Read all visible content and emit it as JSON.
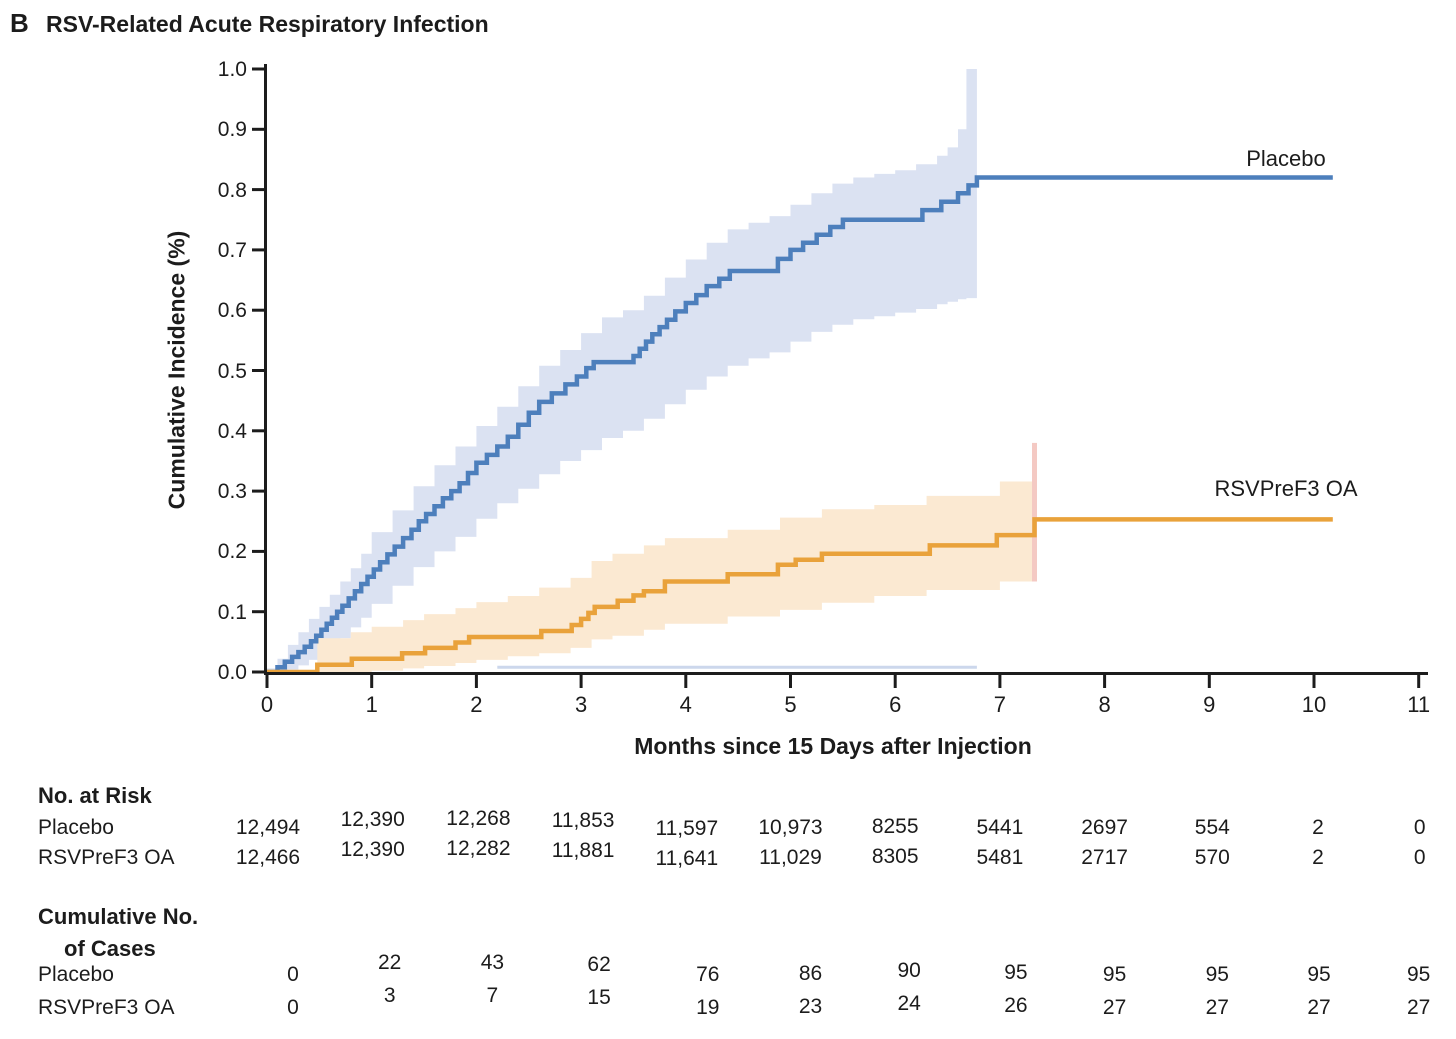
{
  "panel": {
    "letter": "B",
    "title": "RSV-Related Acute Respiratory Infection"
  },
  "chart_data": {
    "type": "line",
    "subtype": "cumulative-incidence-step-curves",
    "title": "RSV-Related Acute Respiratory Infection",
    "xlabel": "Months since 15 Days after Injection",
    "ylabel": "Cumulative Incidence (%)",
    "xlim": [
      0,
      11
    ],
    "ylim": [
      0.0,
      1.0
    ],
    "xticks": [
      "0",
      "1",
      "2",
      "3",
      "4",
      "5",
      "6",
      "7",
      "8",
      "9",
      "10",
      "11"
    ],
    "yticks": [
      "0.0",
      "0.1",
      "0.2",
      "0.3",
      "0.4",
      "0.5",
      "0.6",
      "0.7",
      "0.8",
      "0.9",
      "1.0"
    ],
    "grid": false,
    "legend_position": "inline-right",
    "axis_color": "#1c1c1c",
    "series": [
      {
        "name": "Placebo",
        "color": "#4d7fbc",
        "band_color": "#dbe2f2",
        "end_month": 10.18,
        "final_value": 0.82,
        "steps": [
          [
            0,
            0
          ],
          [
            0.1,
            0.008
          ],
          [
            0.17,
            0.017
          ],
          [
            0.24,
            0.025
          ],
          [
            0.3,
            0.033
          ],
          [
            0.36,
            0.042
          ],
          [
            0.42,
            0.051
          ],
          [
            0.47,
            0.06
          ],
          [
            0.52,
            0.07
          ],
          [
            0.57,
            0.08
          ],
          [
            0.62,
            0.09
          ],
          [
            0.67,
            0.1
          ],
          [
            0.72,
            0.11
          ],
          [
            0.78,
            0.122
          ],
          [
            0.84,
            0.134
          ],
          [
            0.9,
            0.146
          ],
          [
            0.96,
            0.158
          ],
          [
            1.02,
            0.17
          ],
          [
            1.08,
            0.182
          ],
          [
            1.15,
            0.195
          ],
          [
            1.22,
            0.208
          ],
          [
            1.3,
            0.222
          ],
          [
            1.38,
            0.236
          ],
          [
            1.45,
            0.25
          ],
          [
            1.52,
            0.262
          ],
          [
            1.6,
            0.275
          ],
          [
            1.68,
            0.288
          ],
          [
            1.76,
            0.3
          ],
          [
            1.84,
            0.313
          ],
          [
            1.92,
            0.33
          ],
          [
            2.0,
            0.347
          ],
          [
            2.1,
            0.36
          ],
          [
            2.2,
            0.374
          ],
          [
            2.3,
            0.39
          ],
          [
            2.4,
            0.41
          ],
          [
            2.5,
            0.43
          ],
          [
            2.6,
            0.448
          ],
          [
            2.72,
            0.462
          ],
          [
            2.85,
            0.477
          ],
          [
            2.96,
            0.49
          ],
          [
            3.05,
            0.504
          ],
          [
            3.12,
            0.514
          ],
          [
            3.5,
            0.524
          ],
          [
            3.56,
            0.536
          ],
          [
            3.62,
            0.548
          ],
          [
            3.68,
            0.56
          ],
          [
            3.75,
            0.572
          ],
          [
            3.82,
            0.584
          ],
          [
            3.9,
            0.598
          ],
          [
            4.0,
            0.612
          ],
          [
            4.1,
            0.625
          ],
          [
            4.2,
            0.64
          ],
          [
            4.32,
            0.652
          ],
          [
            4.42,
            0.665
          ],
          [
            4.88,
            0.685
          ],
          [
            5.0,
            0.7
          ],
          [
            5.12,
            0.712
          ],
          [
            5.25,
            0.725
          ],
          [
            5.38,
            0.738
          ],
          [
            5.5,
            0.75
          ],
          [
            6.26,
            0.766
          ],
          [
            6.44,
            0.78
          ],
          [
            6.6,
            0.794
          ],
          [
            6.7,
            0.807
          ],
          [
            6.78,
            0.82
          ]
        ],
        "band": [
          [
            0,
            0,
            0.006
          ],
          [
            0.1,
            0,
            0.022
          ],
          [
            0.2,
            0.004,
            0.045
          ],
          [
            0.3,
            0.011,
            0.066
          ],
          [
            0.4,
            0.02,
            0.088
          ],
          [
            0.5,
            0.03,
            0.108
          ],
          [
            0.6,
            0.044,
            0.128
          ],
          [
            0.7,
            0.056,
            0.15
          ],
          [
            0.8,
            0.074,
            0.172
          ],
          [
            0.9,
            0.09,
            0.196
          ],
          [
            1.0,
            0.113,
            0.232
          ],
          [
            1.2,
            0.143,
            0.268
          ],
          [
            1.4,
            0.174,
            0.308
          ],
          [
            1.6,
            0.2,
            0.343
          ],
          [
            1.8,
            0.224,
            0.374
          ],
          [
            2.0,
            0.254,
            0.408
          ],
          [
            2.2,
            0.28,
            0.44
          ],
          [
            2.4,
            0.304,
            0.474
          ],
          [
            2.6,
            0.328,
            0.508
          ],
          [
            2.8,
            0.35,
            0.534
          ],
          [
            3.0,
            0.368,
            0.562
          ],
          [
            3.2,
            0.388,
            0.588
          ],
          [
            3.4,
            0.4,
            0.6
          ],
          [
            3.6,
            0.42,
            0.624
          ],
          [
            3.8,
            0.444,
            0.654
          ],
          [
            4.0,
            0.468,
            0.684
          ],
          [
            4.2,
            0.49,
            0.712
          ],
          [
            4.4,
            0.508,
            0.734
          ],
          [
            4.6,
            0.52,
            0.745
          ],
          [
            4.8,
            0.53,
            0.756
          ],
          [
            5.0,
            0.548,
            0.775
          ],
          [
            5.2,
            0.564,
            0.794
          ],
          [
            5.4,
            0.576,
            0.81
          ],
          [
            5.6,
            0.585,
            0.82
          ],
          [
            5.8,
            0.59,
            0.826
          ],
          [
            6.0,
            0.596,
            0.832
          ],
          [
            6.2,
            0.602,
            0.842
          ],
          [
            6.4,
            0.61,
            0.856
          ],
          [
            6.5,
            0.614,
            0.87
          ],
          [
            6.6,
            0.618,
            0.9
          ],
          [
            6.68,
            0.62,
            1.0
          ],
          [
            6.78,
            0.62,
            1.0
          ]
        ]
      },
      {
        "name": "RSVPreF3 OA",
        "color": "#e9a23b",
        "band_color": "#fbe9d2",
        "end_month": 10.18,
        "final_value": 0.253,
        "steps": [
          [
            0,
            0
          ],
          [
            0.48,
            0.012
          ],
          [
            0.81,
            0.022
          ],
          [
            1.29,
            0.031
          ],
          [
            1.51,
            0.04
          ],
          [
            1.8,
            0.049
          ],
          [
            1.93,
            0.058
          ],
          [
            2.62,
            0.068
          ],
          [
            2.91,
            0.078
          ],
          [
            3.0,
            0.088
          ],
          [
            3.07,
            0.098
          ],
          [
            3.13,
            0.108
          ],
          [
            3.35,
            0.118
          ],
          [
            3.5,
            0.127
          ],
          [
            3.6,
            0.134
          ],
          [
            3.8,
            0.15
          ],
          [
            4.4,
            0.162
          ],
          [
            4.88,
            0.178
          ],
          [
            5.05,
            0.186
          ],
          [
            5.3,
            0.196
          ],
          [
            6.33,
            0.21
          ],
          [
            6.97,
            0.227
          ],
          [
            7.33,
            0.253
          ]
        ],
        "band": [
          [
            0.48,
            0,
            0.056
          ],
          [
            0.8,
            0,
            0.066
          ],
          [
            1.0,
            0.002,
            0.075
          ],
          [
            1.3,
            0.006,
            0.086
          ],
          [
            1.5,
            0.01,
            0.096
          ],
          [
            1.8,
            0.015,
            0.106
          ],
          [
            2.0,
            0.02,
            0.116
          ],
          [
            2.3,
            0.026,
            0.126
          ],
          [
            2.6,
            0.031,
            0.14
          ],
          [
            2.9,
            0.04,
            0.156
          ],
          [
            3.1,
            0.054,
            0.184
          ],
          [
            3.3,
            0.06,
            0.196
          ],
          [
            3.6,
            0.07,
            0.21
          ],
          [
            3.8,
            0.08,
            0.222
          ],
          [
            4.4,
            0.092,
            0.236
          ],
          [
            4.9,
            0.103,
            0.256
          ],
          [
            5.3,
            0.115,
            0.27
          ],
          [
            5.8,
            0.126,
            0.277
          ],
          [
            6.3,
            0.136,
            0.292
          ],
          [
            7.0,
            0.15,
            0.316
          ],
          [
            7.33,
            0.156,
            0.332
          ]
        ]
      }
    ],
    "annotations": {
      "censor_bar": {
        "month": 7.33,
        "from": 0.15,
        "to": 0.38,
        "color": "#f4c9c3"
      },
      "band_edge_baseline": {
        "from_month": 2.2,
        "to_month": 6.78,
        "value": 0.008,
        "color": "#ccd7ec"
      }
    }
  },
  "risk_table": {
    "header": "No. at Risk",
    "rows": [
      {
        "label": "Placebo",
        "values": [
          "12,494",
          "12,390",
          "12,268",
          "11,853",
          "11,597",
          "10,973",
          "8255",
          "5441",
          "2697",
          "554",
          "2",
          "0"
        ]
      },
      {
        "label": "RSVPreF3 OA",
        "values": [
          "12,466",
          "12,390",
          "12,282",
          "11,881",
          "11,641",
          "11,029",
          "8305",
          "5481",
          "2717",
          "570",
          "2",
          "0"
        ]
      }
    ]
  },
  "cases_table": {
    "header_line1": "Cumulative No.",
    "header_line2": "of Cases",
    "rows": [
      {
        "label": "Placebo",
        "values": [
          "0",
          "22",
          "43",
          "62",
          "76",
          "86",
          "90",
          "95",
          "95",
          "95",
          "95",
          "95"
        ]
      },
      {
        "label": "RSVPreF3 OA",
        "values": [
          "0",
          "3",
          "7",
          "15",
          "19",
          "23",
          "24",
          "26",
          "27",
          "27",
          "27",
          "27"
        ]
      }
    ]
  }
}
